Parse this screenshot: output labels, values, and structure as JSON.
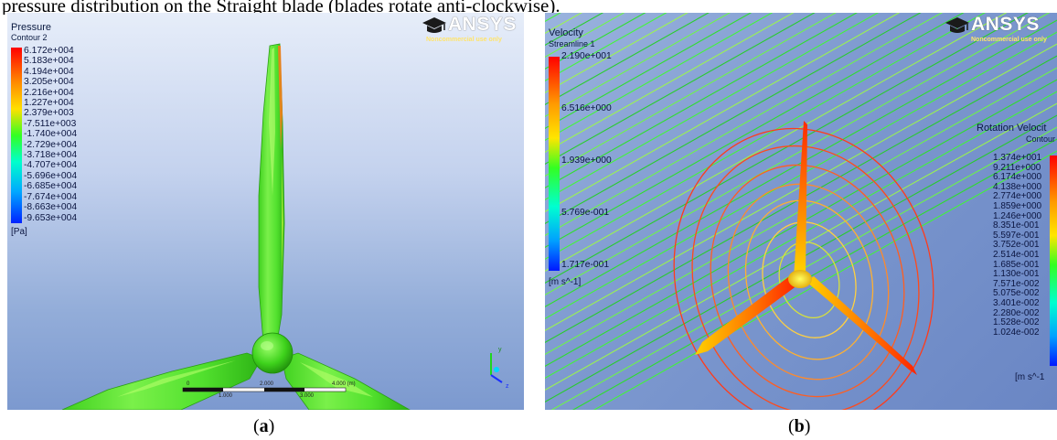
{
  "caption": "pressure distribution on the Straight blade (blades rotate anti-clockwise).",
  "logo": {
    "text": "ANSYS",
    "tagline": "Noncommercial use only"
  },
  "panel_a": {
    "label_open": "(",
    "label_letter": "a",
    "label_close": ")",
    "legend_title": "Pressure",
    "legend_subtitle": "Contour 2",
    "ticks": [
      "6.172e+004",
      "5.183e+004",
      "4.194e+004",
      "3.205e+004",
      "2.216e+004",
      "1.227e+004",
      "2.379e+003",
      "-7.511e+003",
      "-1.740e+004",
      "-2.729e+004",
      "-3.718e+004",
      "-4.707e+004",
      "-5.696e+004",
      "-6.685e+004",
      "-7.674e+004",
      "-8.663e+004",
      "-9.653e+004"
    ],
    "unit": "[Pa]",
    "scale_labels": [
      "0",
      "2.000",
      "4.000 (m)",
      "1.000",
      "3.000"
    ],
    "axis_labels": {
      "y": "y",
      "z": "z"
    }
  },
  "panel_b": {
    "label_open": "(",
    "label_letter": "b",
    "label_close": ")",
    "legend_title": "Velocity",
    "legend_subtitle": "Streamline 1",
    "ticks": [
      "2.190e+001",
      "6.516e+000",
      "1.939e+000",
      "5.769e-001",
      "1.717e-001"
    ],
    "unit": "[m s^-1]",
    "legend2_title": "Rotation Velocit",
    "legend2_subtitle": "Contour",
    "ticks2": [
      "1.374e+001",
      "9.211e+000",
      "6.174e+000",
      "4.138e+000",
      "2.774e+000",
      "1.859e+000",
      "1.246e+000",
      "8.351e-001",
      "5.597e-001",
      "3.752e-001",
      "2.514e-001",
      "1.685e-001",
      "1.130e-001",
      "7.571e-002",
      "5.075e-002",
      "3.401e-002",
      "2.280e-002",
      "1.528e-002",
      "1.024e-002"
    ],
    "unit2": "[m s^-1"
  }
}
